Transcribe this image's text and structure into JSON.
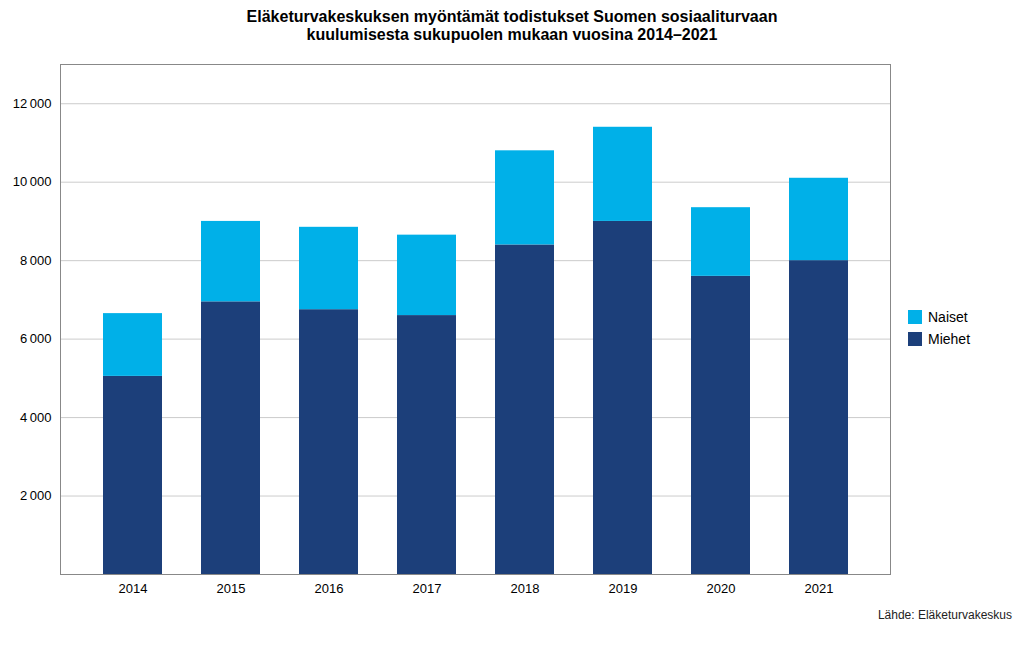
{
  "chart_data": {
    "type": "bar",
    "stacked": true,
    "title": "Eläketurvakeskuksen myöntämät todistukset Suomen sosiaaliturvaan\nkuulumisesta sukupuolen mukaan vuosina 2014–2021",
    "source": "Lähde: Eläketurvakeskus",
    "categories": [
      "2014",
      "2015",
      "2016",
      "2017",
      "2018",
      "2019",
      "2020",
      "2021"
    ],
    "series": [
      {
        "name": "Miehet",
        "color": "#1c3f7a",
        "values": [
          5050,
          6950,
          6750,
          6600,
          8400,
          9000,
          7600,
          8000
        ]
      },
      {
        "name": "Naiset",
        "color": "#00b0e8",
        "values": [
          1600,
          2050,
          2100,
          2050,
          2400,
          2400,
          1750,
          2100
        ]
      }
    ],
    "ylim": [
      0,
      13000
    ],
    "yticks": [
      {
        "value": 2000,
        "label": "2 000"
      },
      {
        "value": 4000,
        "label": "4 000"
      },
      {
        "value": 6000,
        "label": "6 000"
      },
      {
        "value": 8000,
        "label": "8 000"
      },
      {
        "value": 10000,
        "label": "10 000"
      },
      {
        "value": 12000,
        "label": "12 000"
      }
    ],
    "grid": true,
    "legend": "right"
  }
}
